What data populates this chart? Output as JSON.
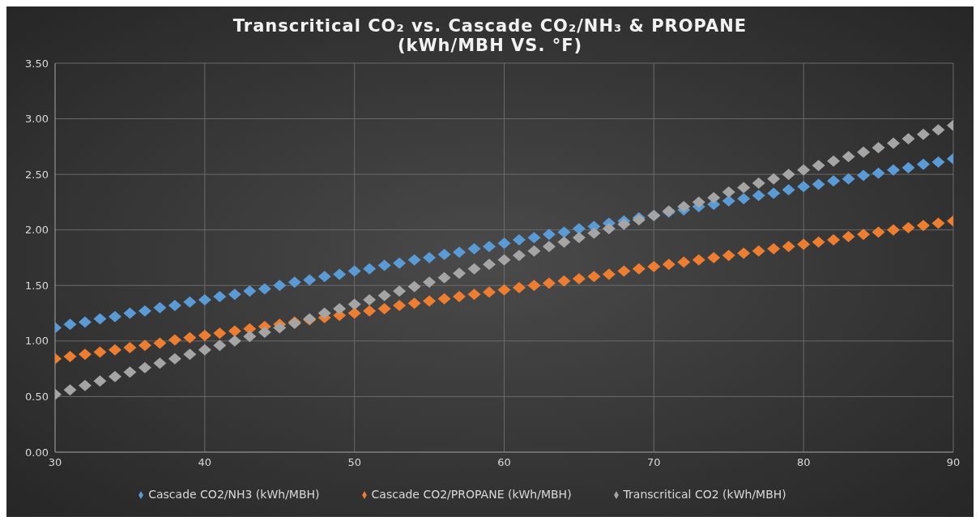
{
  "chart_data": {
    "type": "scatter",
    "title": "Transcritical CO₂ vs. Cascade CO₂/NH₃ & PROPANE",
    "subtitle": "(kWh/MBH VS. °F)",
    "x": [
      30,
      31,
      32,
      33,
      34,
      35,
      36,
      37,
      38,
      39,
      40,
      41,
      42,
      43,
      44,
      45,
      46,
      47,
      48,
      49,
      50,
      51,
      52,
      53,
      54,
      55,
      56,
      57,
      58,
      59,
      60,
      61,
      62,
      63,
      64,
      65,
      66,
      67,
      68,
      69,
      70,
      71,
      72,
      73,
      74,
      75,
      76,
      77,
      78,
      79,
      80,
      81,
      82,
      83,
      84,
      85,
      86,
      87,
      88,
      89,
      90
    ],
    "series": [
      {
        "name": "Cascade CO2/NH3 (kWh/MBH)",
        "color": "#5b9bd5",
        "values": [
          1.12,
          1.15,
          1.17,
          1.2,
          1.22,
          1.25,
          1.27,
          1.3,
          1.32,
          1.35,
          1.37,
          1.4,
          1.42,
          1.45,
          1.47,
          1.5,
          1.53,
          1.55,
          1.58,
          1.6,
          1.63,
          1.65,
          1.68,
          1.7,
          1.73,
          1.75,
          1.78,
          1.8,
          1.83,
          1.85,
          1.88,
          1.91,
          1.93,
          1.96,
          1.98,
          2.01,
          2.03,
          2.06,
          2.08,
          2.11,
          2.13,
          2.16,
          2.18,
          2.21,
          2.23,
          2.26,
          2.28,
          2.31,
          2.33,
          2.36,
          2.39,
          2.41,
          2.44,
          2.46,
          2.49,
          2.51,
          2.54,
          2.56,
          2.59,
          2.61,
          2.64
        ]
      },
      {
        "name": "Cascade CO2/PROPANE (kWh/MBH)",
        "color": "#ed7d31",
        "values": [
          0.84,
          0.86,
          0.88,
          0.9,
          0.92,
          0.94,
          0.96,
          0.98,
          1.01,
          1.03,
          1.05,
          1.07,
          1.09,
          1.11,
          1.13,
          1.15,
          1.17,
          1.19,
          1.21,
          1.23,
          1.25,
          1.27,
          1.29,
          1.32,
          1.34,
          1.36,
          1.38,
          1.4,
          1.42,
          1.44,
          1.46,
          1.48,
          1.5,
          1.52,
          1.54,
          1.56,
          1.58,
          1.6,
          1.63,
          1.65,
          1.67,
          1.69,
          1.71,
          1.73,
          1.75,
          1.77,
          1.79,
          1.81,
          1.83,
          1.85,
          1.87,
          1.89,
          1.91,
          1.94,
          1.96,
          1.98,
          2.0,
          2.02,
          2.04,
          2.06,
          2.08
        ]
      },
      {
        "name": "Transcritical CO2 (kWh/MBH)",
        "color": "#a5a5a5",
        "values": [
          0.52,
          0.56,
          0.6,
          0.64,
          0.68,
          0.72,
          0.76,
          0.8,
          0.84,
          0.88,
          0.92,
          0.96,
          1.0,
          1.04,
          1.08,
          1.12,
          1.16,
          1.2,
          1.25,
          1.29,
          1.33,
          1.37,
          1.41,
          1.45,
          1.49,
          1.53,
          1.57,
          1.61,
          1.65,
          1.69,
          1.73,
          1.77,
          1.81,
          1.85,
          1.89,
          1.93,
          1.97,
          2.01,
          2.05,
          2.09,
          2.13,
          2.17,
          2.21,
          2.25,
          2.29,
          2.34,
          2.38,
          2.42,
          2.46,
          2.5,
          2.54,
          2.58,
          2.62,
          2.66,
          2.7,
          2.74,
          2.78,
          2.82,
          2.86,
          2.9,
          2.94
        ]
      }
    ],
    "xlim": [
      30,
      90
    ],
    "xticks": [
      30,
      40,
      50,
      60,
      70,
      80,
      90
    ],
    "ylim": [
      0,
      3.5
    ],
    "yticks": [
      {
        "value": 0,
        "label": "0.00"
      },
      {
        "value": 0.5,
        "label": "0.50"
      },
      {
        "value": 1,
        "label": "1.00"
      },
      {
        "value": 1.5,
        "label": "1.50"
      },
      {
        "value": 2,
        "label": "2.00"
      },
      {
        "value": 2.5,
        "label": "2.50"
      },
      {
        "value": 3,
        "label": "3.00"
      },
      {
        "value": 3.5,
        "label": "3.50"
      }
    ],
    "grid": true,
    "legend": "bottom",
    "marker": "diamond"
  }
}
